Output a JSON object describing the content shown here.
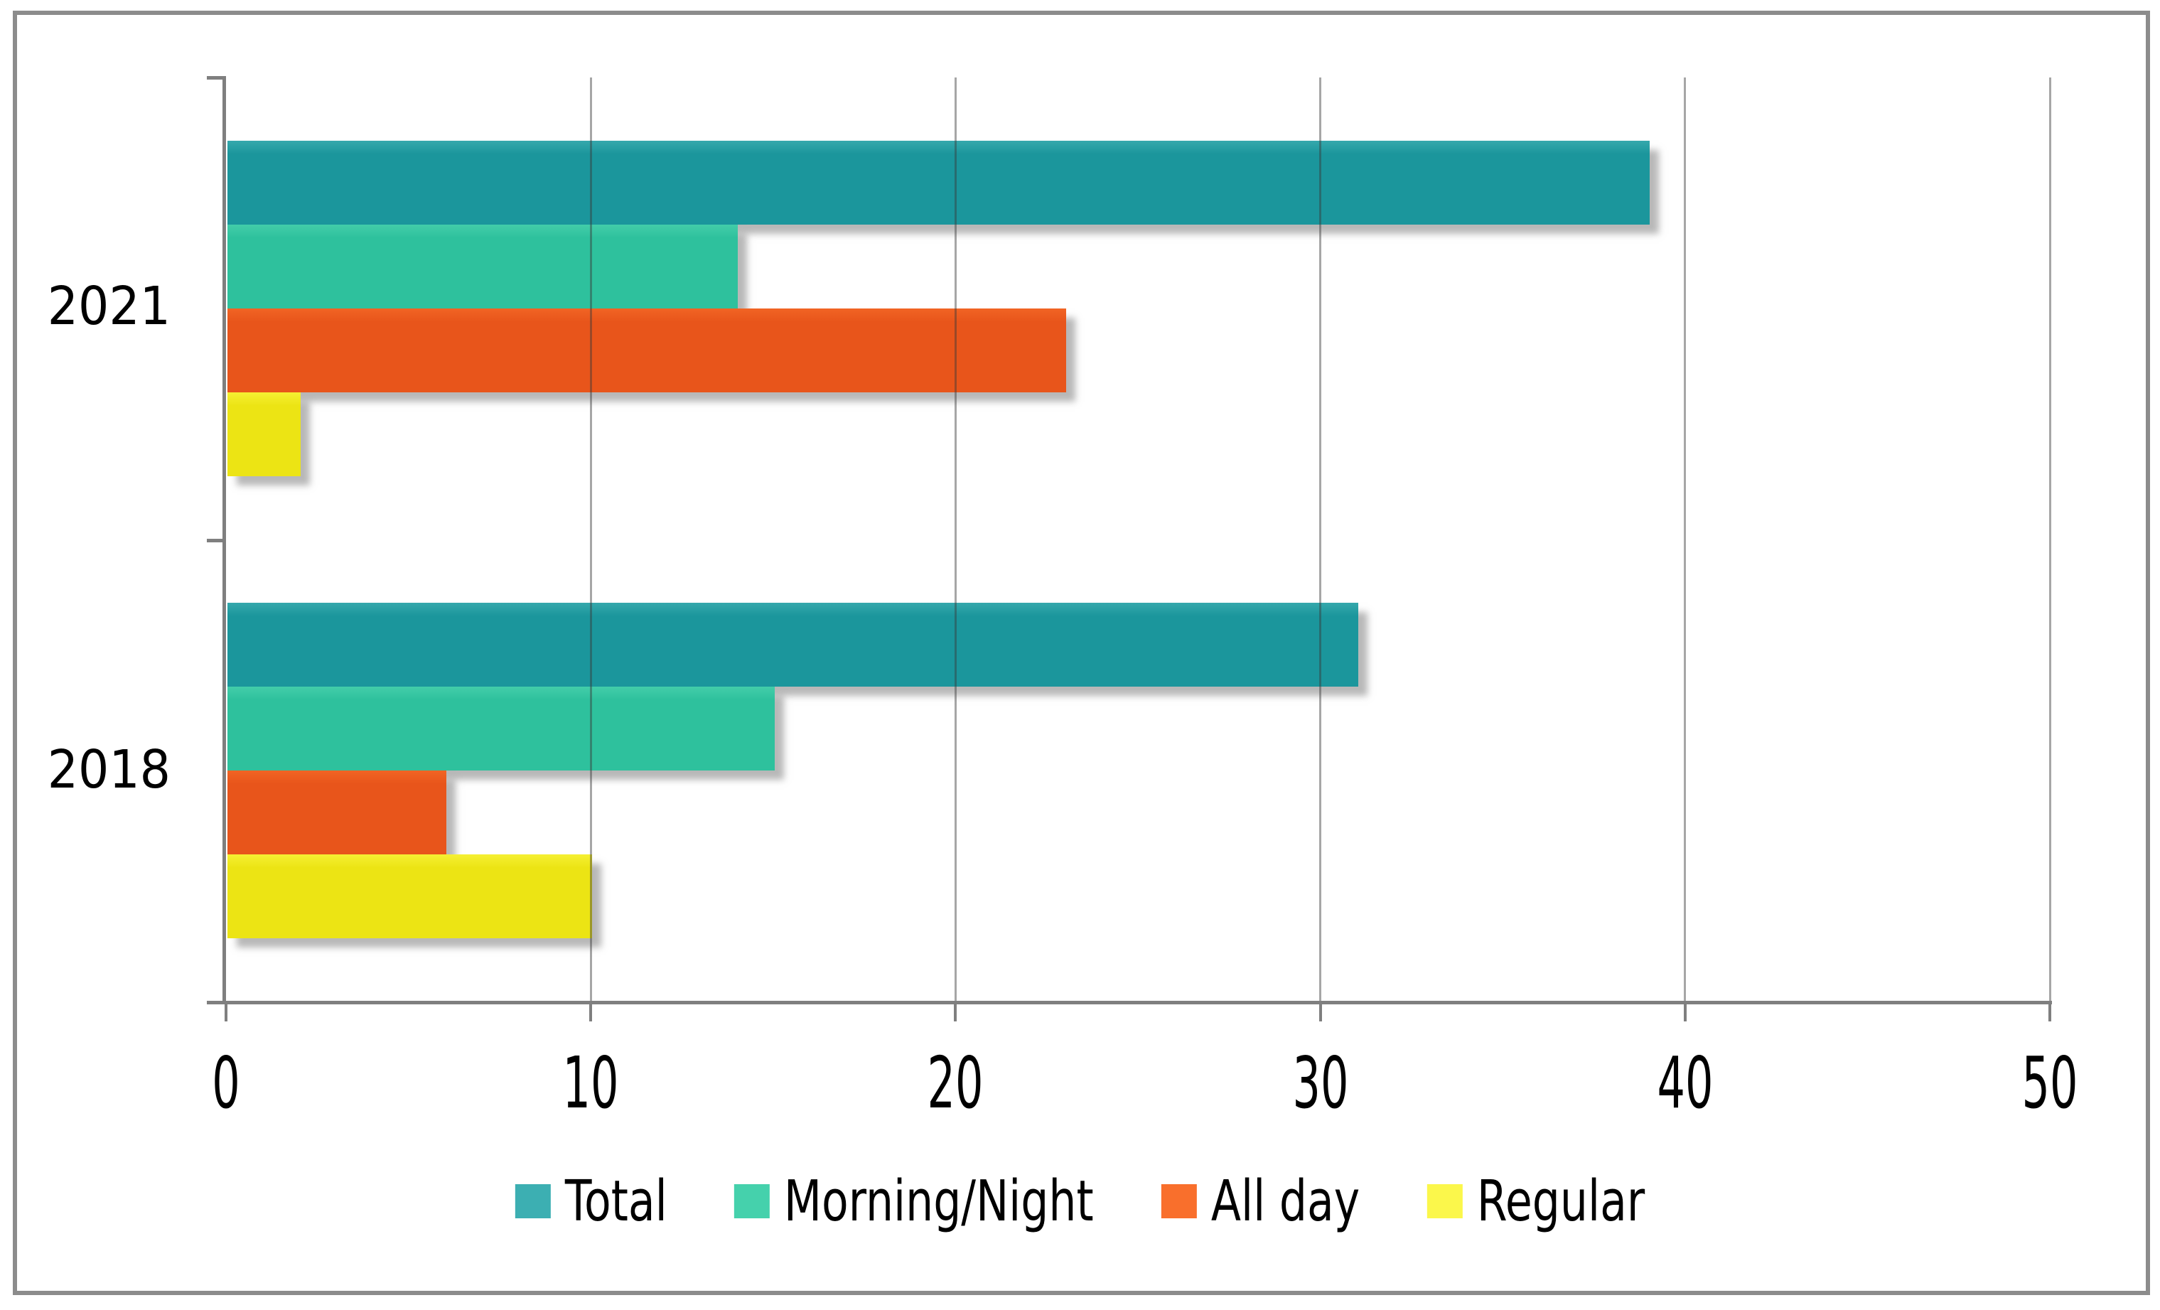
{
  "chart_data": {
    "type": "bar",
    "orientation": "horizontal",
    "categories": [
      "2021",
      "2018"
    ],
    "series": [
      {
        "name": "Total",
        "values": [
          39,
          31
        ],
        "color": "#1b969c",
        "color_light": "#35a8ac",
        "legend_color": "#3cafb2"
      },
      {
        "name": "Morning/Night",
        "values": [
          14,
          15
        ],
        "color": "#2ec19d",
        "color_light": "#43cda9",
        "legend_color": "#45d1ac"
      },
      {
        "name": "All day",
        "values": [
          23,
          6
        ],
        "color": "#e8551b",
        "color_light": "#f16424",
        "legend_color": "#f96f2c"
      },
      {
        "name": "Regular",
        "values": [
          2,
          10
        ],
        "color": "#ece414",
        "color_light": "#f5f033",
        "legend_color": "#fbf74b"
      }
    ],
    "x_axis": {
      "min": 0,
      "max": 50,
      "ticks": [
        0,
        10,
        20,
        30,
        40,
        50
      ]
    },
    "grid": true,
    "grid_color": "#9c9c9c",
    "axis_color": "#7f7f7f",
    "frame_color": "#8c8c8c",
    "background_color": "#ffffff",
    "legend_position": "bottom"
  }
}
